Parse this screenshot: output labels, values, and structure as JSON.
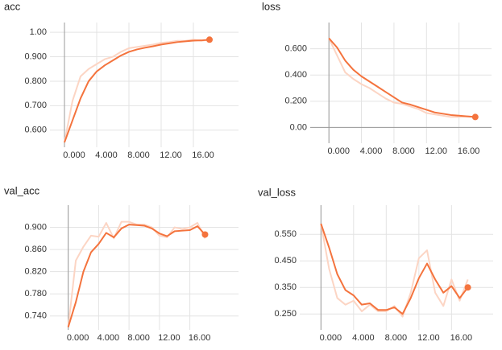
{
  "chart_data": [
    {
      "type": "line",
      "title": "acc",
      "x": [
        0,
        1,
        2,
        3,
        4,
        5,
        6,
        7,
        8,
        9,
        10,
        11,
        12,
        13,
        14,
        15,
        16,
        17,
        18
      ],
      "series": [
        {
          "color": "#fcd5c4",
          "values": [
            0.55,
            0.72,
            0.82,
            0.85,
            0.87,
            0.89,
            0.9,
            0.92,
            0.935,
            0.94,
            0.945,
            0.95,
            0.957,
            0.96,
            0.965,
            0.965,
            0.97,
            0.965,
            0.97
          ]
        },
        {
          "color": "#f4733d",
          "values": [
            0.55,
            0.64,
            0.73,
            0.8,
            0.84,
            0.865,
            0.885,
            0.905,
            0.92,
            0.93,
            0.937,
            0.943,
            0.95,
            0.955,
            0.96,
            0.963,
            0.966,
            0.967,
            0.97
          ]
        }
      ],
      "xlim": [
        -1.8,
        21.6
      ],
      "ylim": [
        0.53,
        1.04
      ],
      "xticks": [
        {
          "value": 0,
          "label": "0.000"
        },
        {
          "value": 4,
          "label": "4.000"
        },
        {
          "value": 8,
          "label": "8.000"
        },
        {
          "value": 12,
          "label": "12.00"
        },
        {
          "value": 16,
          "label": "16.00"
        }
      ],
      "yticks": [
        {
          "value": 0.6,
          "label": "0.600"
        },
        {
          "value": 0.7,
          "label": "0.700"
        },
        {
          "value": 0.8,
          "label": "0.800"
        },
        {
          "value": 0.9,
          "label": "0.900"
        },
        {
          "value": 1,
          "label": "1.00"
        }
      ],
      "grid": true
    },
    {
      "type": "line",
      "title": "loss",
      "x": [
        0,
        1,
        2,
        3,
        4,
        5,
        6,
        7,
        8,
        9,
        10,
        11,
        12,
        13,
        14,
        15,
        16,
        17,
        18
      ],
      "series": [
        {
          "color": "#fcd5c4",
          "values": [
            0.68,
            0.55,
            0.42,
            0.37,
            0.33,
            0.3,
            0.26,
            0.22,
            0.19,
            0.18,
            0.16,
            0.14,
            0.11,
            0.1,
            0.09,
            0.08,
            0.08,
            0.085,
            0.08
          ]
        },
        {
          "color": "#f4733d",
          "values": [
            0.68,
            0.61,
            0.51,
            0.44,
            0.39,
            0.35,
            0.31,
            0.27,
            0.23,
            0.19,
            0.175,
            0.155,
            0.135,
            0.115,
            0.105,
            0.095,
            0.09,
            0.085,
            0.08
          ]
        }
      ],
      "xlim": [
        -2.3,
        20
      ],
      "ylim": [
        -0.12,
        0.8
      ],
      "xticks": [
        {
          "value": 0,
          "label": "0.000"
        },
        {
          "value": 4,
          "label": "4.000"
        },
        {
          "value": 8,
          "label": "8.000"
        },
        {
          "value": 12,
          "label": "12.00"
        },
        {
          "value": 16,
          "label": "16.00"
        }
      ],
      "yticks": [
        {
          "value": 0,
          "label": "0.00"
        },
        {
          "value": 0.2,
          "label": "0.200"
        },
        {
          "value": 0.4,
          "label": "0.400"
        },
        {
          "value": 0.6,
          "label": "0.600"
        }
      ],
      "grid": true
    },
    {
      "type": "line",
      "title": "val_acc",
      "x": [
        0,
        1,
        2,
        3,
        4,
        5,
        6,
        7,
        8,
        9,
        10,
        11,
        12,
        13,
        14,
        15,
        16,
        17,
        18
      ],
      "series": [
        {
          "color": "#fcd5c4",
          "values": [
            0.72,
            0.84,
            0.865,
            0.885,
            0.883,
            0.908,
            0.88,
            0.91,
            0.91,
            0.905,
            0.905,
            0.9,
            0.885,
            0.882,
            0.9,
            0.897,
            0.9,
            0.908,
            0.88
          ]
        },
        {
          "color": "#f4733d",
          "values": [
            0.72,
            0.765,
            0.82,
            0.855,
            0.87,
            0.89,
            0.882,
            0.898,
            0.905,
            0.904,
            0.903,
            0.898,
            0.889,
            0.884,
            0.893,
            0.894,
            0.895,
            0.902,
            0.887
          ]
        }
      ],
      "xlim": [
        -2.4,
        22.4
      ],
      "ylim": [
        0.715,
        0.94
      ],
      "xticks": [
        {
          "value": 0,
          "label": "0.000"
        },
        {
          "value": 4,
          "label": "4.000"
        },
        {
          "value": 8,
          "label": "8.000"
        },
        {
          "value": 12,
          "label": "12.00"
        },
        {
          "value": 16,
          "label": "16.00"
        }
      ],
      "yticks": [
        {
          "value": 0.74,
          "label": "0.740"
        },
        {
          "value": 0.78,
          "label": "0.780"
        },
        {
          "value": 0.82,
          "label": "0.820"
        },
        {
          "value": 0.86,
          "label": "0.860"
        },
        {
          "value": 0.9,
          "label": "0.900"
        }
      ],
      "grid": true
    },
    {
      "type": "line",
      "title": "val_loss",
      "x": [
        0,
        1,
        2,
        3,
        4,
        5,
        6,
        7,
        8,
        9,
        10,
        11,
        12,
        13,
        14,
        15,
        16,
        17,
        18
      ],
      "series": [
        {
          "color": "#fcd5c4",
          "values": [
            0.59,
            0.42,
            0.31,
            0.285,
            0.3,
            0.26,
            0.285,
            0.26,
            0.26,
            0.28,
            0.24,
            0.33,
            0.46,
            0.49,
            0.33,
            0.28,
            0.38,
            0.3,
            0.38
          ]
        },
        {
          "color": "#f4733d",
          "values": [
            0.59,
            0.5,
            0.4,
            0.34,
            0.32,
            0.285,
            0.29,
            0.265,
            0.265,
            0.275,
            0.25,
            0.31,
            0.385,
            0.44,
            0.38,
            0.33,
            0.355,
            0.31,
            0.35
          ]
        }
      ],
      "xlim": [
        -2.6,
        21.1
      ],
      "ylim": [
        0.19,
        0.66
      ],
      "xticks": [
        {
          "value": 0,
          "label": "0.000"
        },
        {
          "value": 4,
          "label": "4.000"
        },
        {
          "value": 8,
          "label": "8.000"
        },
        {
          "value": 12,
          "label": "12.00"
        },
        {
          "value": 16,
          "label": "16.00"
        }
      ],
      "yticks": [
        {
          "value": 0.25,
          "label": "0.250"
        },
        {
          "value": 0.35,
          "label": "0.350"
        },
        {
          "value": 0.45,
          "label": "0.450"
        },
        {
          "value": 0.55,
          "label": "0.550"
        }
      ],
      "grid": true
    }
  ]
}
